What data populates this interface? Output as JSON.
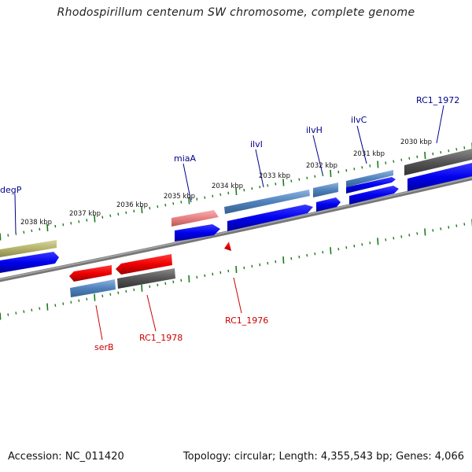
{
  "title": "Rhodospirillum centenum SW chromosome, complete genome",
  "footer": {
    "accession": "Accession: NC_011420",
    "summary": "Topology: circular; Length: 4,355,543 bp; Genes: 4,066"
  },
  "scale_labels": [
    "2038 kbp",
    "2037 kbp",
    "2036 kbp",
    "2035 kbp",
    "2034 kbp",
    "2033 kbp",
    "2032 kbp",
    "2031 kbp",
    "2030 kbp"
  ],
  "gene_labels": {
    "degP": "degP",
    "miaA": "miaA",
    "ilvI": "ilvI",
    "ilvH": "ilvH",
    "ilvC": "ilvC",
    "rc1_1972": "RC1_1972",
    "serB": "serB",
    "rc1_1978": "RC1_1978",
    "rc1_1976": "RC1_1976"
  },
  "colors": {
    "forward_label": "#00008b",
    "reverse_label": "#cc0000",
    "cds_blue": "#0000ee",
    "cds_red": "#ee0000",
    "gene_gray": "#555555",
    "gene_steelblue": "#4f81bd",
    "gene_olive": "#b5b36b",
    "gene_pink": "#e88080",
    "ruler_green": "#1a7a1a",
    "backbone": "#777777"
  }
}
